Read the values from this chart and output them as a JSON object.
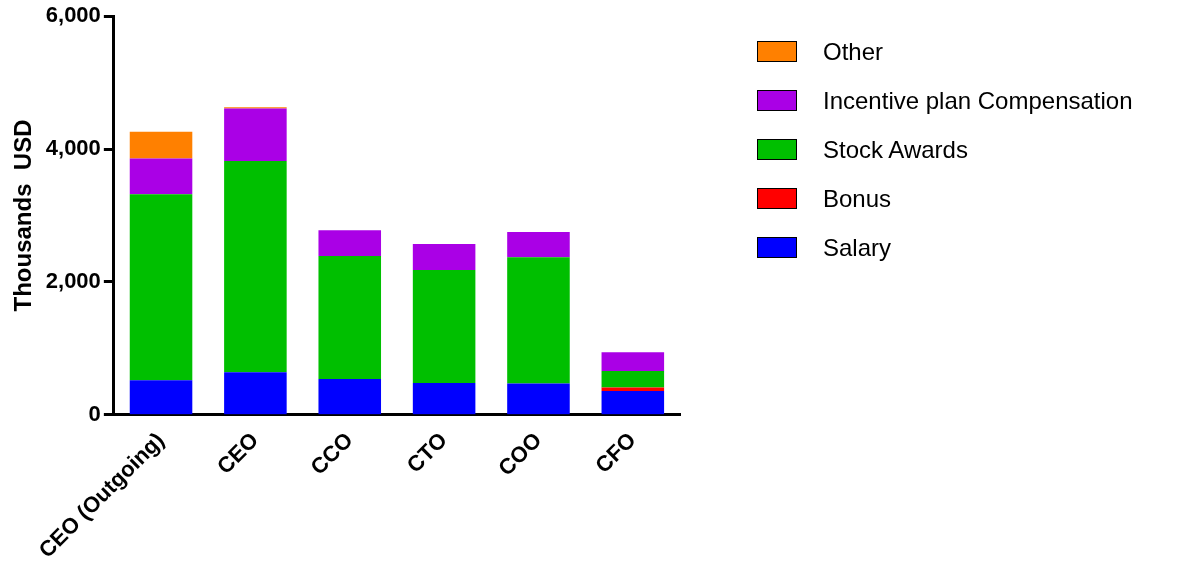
{
  "chart_data": {
    "type": "bar",
    "stacked": true,
    "ylabel": "Thousands  USD",
    "categories": [
      "CEO (Outgoing)",
      "CEO",
      "CCO",
      "CTO",
      "COO",
      "CFO"
    ],
    "series": [
      {
        "name": "Salary",
        "color": "#0000ff",
        "values": [
          520,
          640,
          540,
          480,
          470,
          360
        ]
      },
      {
        "name": "Bonus",
        "color": "#ff0000",
        "values": [
          0,
          0,
          0,
          0,
          0,
          50
        ]
      },
      {
        "name": "Stock Awards",
        "color": "#00bf00",
        "values": [
          2800,
          3180,
          1850,
          1700,
          1900,
          250
        ]
      },
      {
        "name": "Incentive plan Compensation",
        "color": "#aa00e6",
        "values": [
          540,
          790,
          390,
          390,
          380,
          280
        ]
      },
      {
        "name": "Other",
        "color": "#ff8000",
        "values": [
          400,
          20,
          0,
          0,
          0,
          0
        ]
      }
    ],
    "ylim": [
      0,
      6000
    ],
    "yticks": [
      0,
      {
        "value": 2000,
        "label": "2,000"
      },
      {
        "value": 4000,
        "label": "4,000"
      },
      {
        "value": 6000,
        "label": "6,000"
      }
    ],
    "grid": false,
    "legend": "top right"
  }
}
